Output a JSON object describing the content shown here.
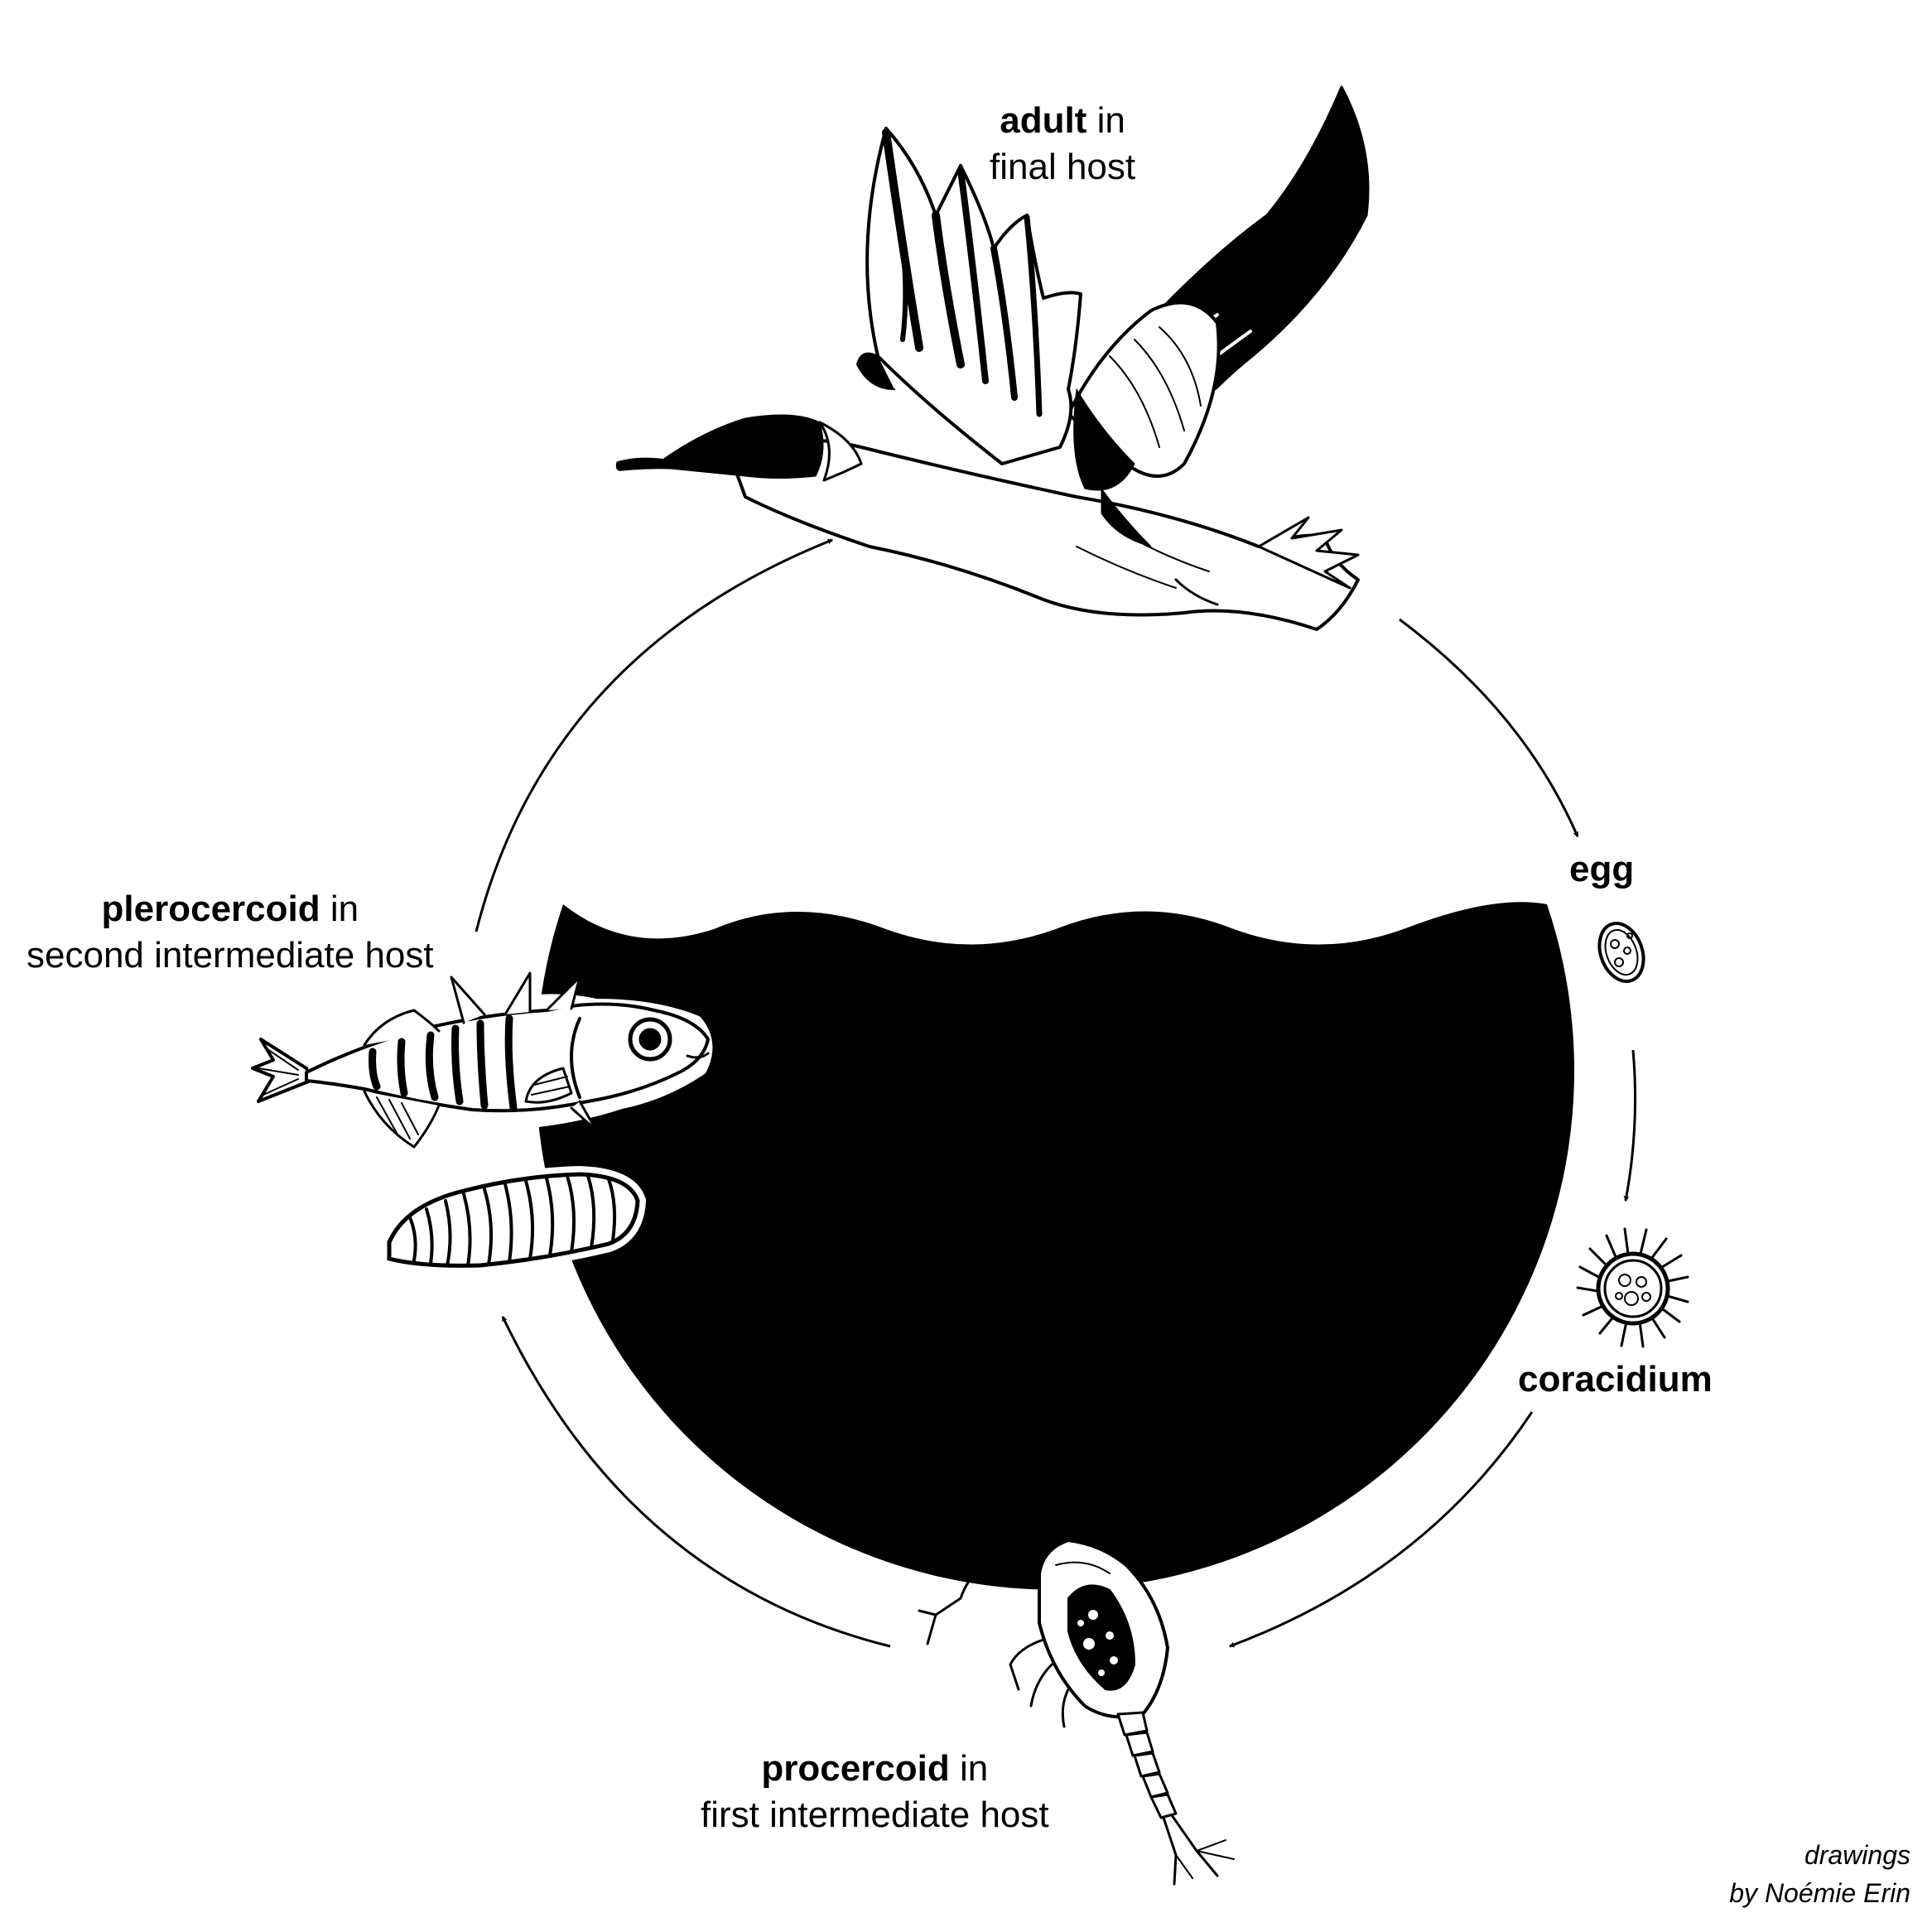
{
  "stages": {
    "adult": {
      "bold": "adult",
      "rest": " in",
      "line2": "final host"
    },
    "egg": {
      "bold": "egg"
    },
    "coracidium": {
      "bold": "coracidium"
    },
    "procercoid": {
      "bold": "procercoid",
      "rest": " in",
      "line2": "first intermediate host"
    },
    "plerocercoid": {
      "bold": "plerocercoid",
      "rest": " in",
      "line2": "second intermediate host"
    }
  },
  "credit": {
    "line1": "drawings",
    "line2": "by Noémie Erin"
  },
  "colors": {
    "ink": "#000000",
    "paper": "#ffffff"
  },
  "illustrations": [
    "bird-illustration",
    "egg-illustration",
    "coracidium-illustration",
    "copepod-illustration",
    "stickleback-illustration",
    "plerocercoid-illustration"
  ]
}
